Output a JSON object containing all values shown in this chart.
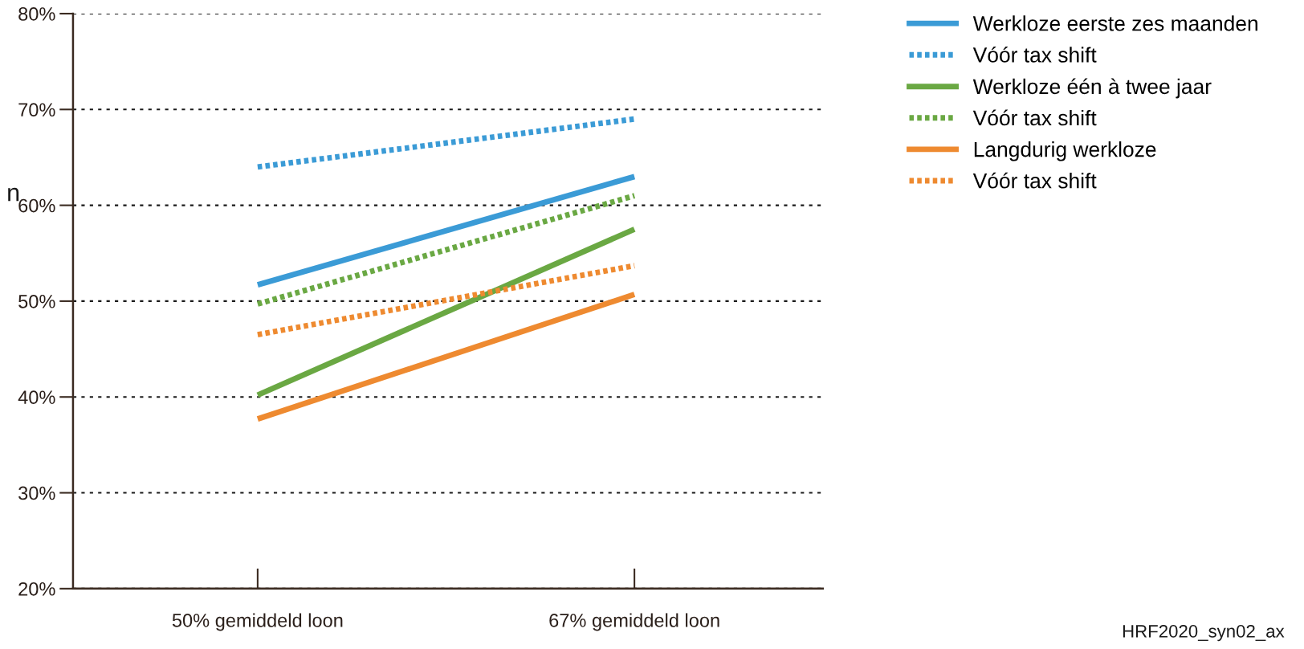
{
  "chart_data": {
    "type": "line",
    "categories": [
      "50% gemiddeld loon",
      "67% gemiddeld loon"
    ],
    "series": [
      {
        "name": "Werkloze eerste zes maanden",
        "color": "#3b9bd6",
        "line_style": "solid",
        "values": [
          51.7,
          63
        ]
      },
      {
        "name": "Vóór tax shift",
        "color": "#3b9bd6",
        "line_style": "dotted",
        "values": [
          64,
          69
        ]
      },
      {
        "name": "Werkloze één à twee jaar",
        "color": "#6aa843",
        "line_style": "solid",
        "values": [
          40.2,
          57.5
        ]
      },
      {
        "name": "Vóór tax shift",
        "color": "#6aa843",
        "line_style": "dotted",
        "values": [
          49.7,
          61
        ]
      },
      {
        "name": "Langdurig werkloze",
        "color": "#ee8a30",
        "line_style": "solid",
        "values": [
          37.7,
          50.7
        ]
      },
      {
        "name": "Vóór tax shift",
        "color": "#ee8a30",
        "line_style": "dotted",
        "values": [
          46.5,
          53.7
        ]
      }
    ],
    "ylim": [
      20,
      80
    ],
    "yticks": [
      {
        "value": 20,
        "label": "20%"
      },
      {
        "value": 30,
        "label": "30%"
      },
      {
        "value": 40,
        "label": "40%"
      },
      {
        "value": 50,
        "label": "50%"
      },
      {
        "value": 60,
        "label": "60%"
      },
      {
        "value": 70,
        "label": "70%"
      },
      {
        "value": 80,
        "label": "80%"
      }
    ],
    "grid": "y",
    "legend": "right",
    "marker": "none",
    "annotations": [
      "n",
      "HRF2020_syn02_ax"
    ]
  }
}
